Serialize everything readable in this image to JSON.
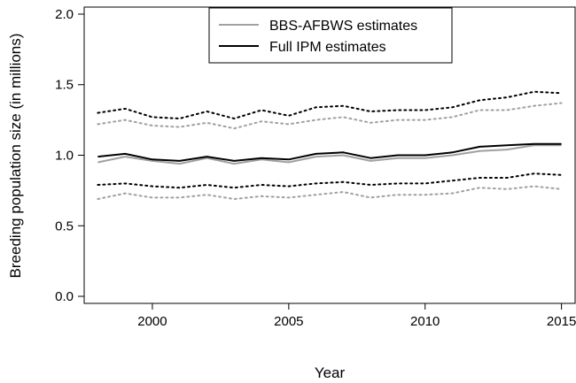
{
  "chart_data": {
    "type": "line",
    "title": "",
    "xlabel": "Year",
    "ylabel": "Breeding population size (in millions)",
    "xlim": [
      1997.5,
      2015.5
    ],
    "ylim": [
      -0.05,
      2.05
    ],
    "xticks": [
      2000,
      2005,
      2010,
      2015
    ],
    "yticks": [
      0.0,
      0.5,
      1.0,
      1.5,
      2.0
    ],
    "ytick_labels": [
      "0.0",
      "0.5",
      "1.0",
      "1.5",
      "2.0"
    ],
    "grid": false,
    "legend_position": "top-center",
    "x": [
      1998,
      1999,
      2000,
      2001,
      2002,
      2003,
      2004,
      2005,
      2006,
      2007,
      2008,
      2009,
      2010,
      2011,
      2012,
      2013,
      2014,
      2015
    ],
    "series": [
      {
        "name": "BBS-AFBWS estimates",
        "color": "#a0a0a0",
        "style": "solid",
        "values": [
          0.95,
          0.99,
          0.96,
          0.94,
          0.98,
          0.94,
          0.97,
          0.95,
          0.99,
          1.0,
          0.96,
          0.98,
          0.98,
          1.0,
          1.03,
          1.04,
          1.07,
          1.07
        ]
      },
      {
        "name": "Full IPM estimates",
        "color": "#000000",
        "style": "solid",
        "values": [
          0.99,
          1.01,
          0.97,
          0.96,
          0.99,
          0.96,
          0.98,
          0.97,
          1.01,
          1.02,
          0.98,
          1.0,
          1.0,
          1.02,
          1.06,
          1.07,
          1.08,
          1.08
        ]
      },
      {
        "color": "#a0a0a0",
        "style": "dotted",
        "values": [
          1.22,
          1.25,
          1.21,
          1.2,
          1.23,
          1.19,
          1.24,
          1.22,
          1.25,
          1.27,
          1.23,
          1.25,
          1.25,
          1.27,
          1.32,
          1.32,
          1.35,
          1.37
        ]
      },
      {
        "color": "#000000",
        "style": "dotted",
        "values": [
          1.3,
          1.33,
          1.27,
          1.26,
          1.31,
          1.26,
          1.32,
          1.28,
          1.34,
          1.35,
          1.31,
          1.32,
          1.32,
          1.34,
          1.39,
          1.41,
          1.45,
          1.44
        ]
      },
      {
        "color": "#a0a0a0",
        "style": "dotted",
        "values": [
          0.69,
          0.73,
          0.7,
          0.7,
          0.72,
          0.69,
          0.71,
          0.7,
          0.72,
          0.74,
          0.7,
          0.72,
          0.72,
          0.73,
          0.77,
          0.76,
          0.78,
          0.76
        ]
      },
      {
        "color": "#000000",
        "style": "dotted",
        "values": [
          0.79,
          0.8,
          0.78,
          0.77,
          0.79,
          0.77,
          0.79,
          0.78,
          0.8,
          0.81,
          0.79,
          0.8,
          0.8,
          0.82,
          0.84,
          0.84,
          0.87,
          0.86
        ]
      }
    ]
  }
}
